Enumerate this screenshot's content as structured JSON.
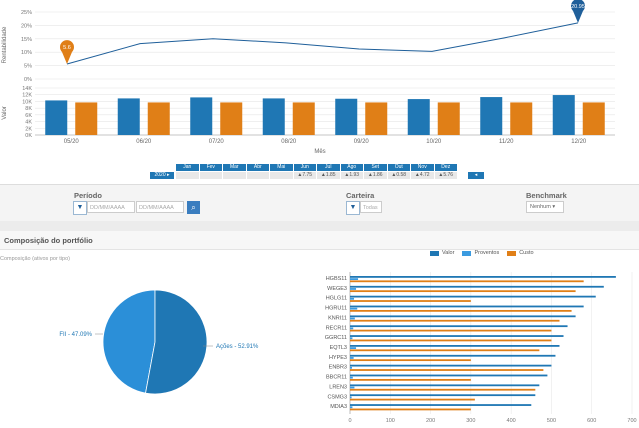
{
  "colors": {
    "valor": "#1f77b4",
    "proventos": "#3b9be0",
    "custo": "#e07f17",
    "line": "#1f5f9a"
  },
  "line_chart": {
    "ylabel": "Rentabilidade",
    "ticks": [
      "25%",
      "20%",
      "15%",
      "10%",
      "5%",
      "0%"
    ],
    "marker_start": "5.6",
    "marker_end": "20.95"
  },
  "bar_chart": {
    "ylabel": "Valor",
    "xlabel": "Mês",
    "ticks": [
      "14K",
      "12K",
      "10K",
      "8K",
      "6K",
      "4K",
      "2K",
      "0K"
    ]
  },
  "months_strip": {
    "months": [
      "Jan",
      "Fev",
      "Mar",
      "Abr",
      "Mai",
      "Jun",
      "Jul",
      "Ago",
      "Set",
      "Out",
      "Nov",
      "Dez"
    ],
    "values": [
      "",
      "",
      "",
      "",
      "",
      "▲7.75",
      "▲1.85",
      "▲1.93",
      "▲1.86",
      "▲0.58",
      "▲4.72",
      "▲5.76"
    ],
    "year": "2020 ▸",
    "nav": "◂ 15.35"
  },
  "filters": {
    "periodo_label": "Período",
    "date_from_placeholder": "DD/MM/AAAA",
    "date_to_placeholder": "DD/MM/AAAA",
    "carteira_label": "Carteira",
    "carteira_value": "Todas",
    "benchmark_label": "Benchmark",
    "benchmark_value": "Nenhum ▾"
  },
  "section": {
    "title": "Composição do portfólio",
    "subtitle": "Composição (ativos por tipo)"
  },
  "pie": {
    "labels": [
      "FII - 47.09%",
      "Ações - 52.91%"
    ]
  },
  "hbar": {
    "legend": [
      "Valor",
      "Proventos",
      "Custo"
    ],
    "ticks": [
      "0",
      "100",
      "200",
      "300",
      "400",
      "500",
      "600",
      "700"
    ]
  },
  "chart_data": [
    {
      "type": "line",
      "x": [
        "05/20",
        "06/20",
        "07/20",
        "08/20",
        "09/20",
        "10/20",
        "11/20",
        "12/20"
      ],
      "series": [
        {
          "values": [
            5.6,
            13.2,
            15.0,
            13.5,
            11.2,
            10.3,
            15.4,
            20.95
          ]
        }
      ],
      "ylabel": "Rentabilidade",
      "ylim": [
        0,
        25
      ],
      "grid": true
    },
    {
      "type": "bar",
      "categories": [
        "05/20",
        "06/20",
        "07/20",
        "08/20",
        "09/20",
        "10/20",
        "11/20",
        "12/20"
      ],
      "series": [
        {
          "values": [
            10300,
            10900,
            11200,
            10900,
            10800,
            10700,
            11300,
            11900
          ]
        },
        {
          "values": [
            9700,
            9700,
            9700,
            9700,
            9700,
            9700,
            9700,
            9700
          ]
        }
      ],
      "xlabel": "Mês",
      "ylabel": "Valor",
      "ylim": [
        0,
        14000
      ],
      "grid": true
    },
    {
      "type": "pie",
      "categories": [
        "FII",
        "Ações"
      ],
      "values": [
        47.09,
        52.91
      ]
    },
    {
      "type": "bar",
      "orientation": "horizontal",
      "categories": [
        "HGBS11",
        "WEGE3",
        "HGLG11",
        "HGRU11",
        "KNRI11",
        "RECR11",
        "GGRC11",
        "EQTL3",
        "HYPE3",
        "ENBR3",
        "BBCR11",
        "LREN3",
        "CSMG3",
        "MDIA3"
      ],
      "series": [
        {
          "name": "Valor",
          "values": [
            660,
            630,
            610,
            580,
            560,
            540,
            530,
            520,
            510,
            500,
            490,
            470,
            460,
            450
          ]
        },
        {
          "name": "Proventos",
          "values": [
            20,
            15,
            10,
            18,
            12,
            8,
            6,
            15,
            9,
            5,
            7,
            11,
            4,
            6
          ]
        },
        {
          "name": "Custo",
          "values": [
            580,
            560,
            300,
            550,
            520,
            500,
            500,
            470,
            300,
            480,
            300,
            460,
            310,
            300
          ]
        }
      ],
      "xlim": [
        0,
        700
      ],
      "grid": true
    }
  ]
}
